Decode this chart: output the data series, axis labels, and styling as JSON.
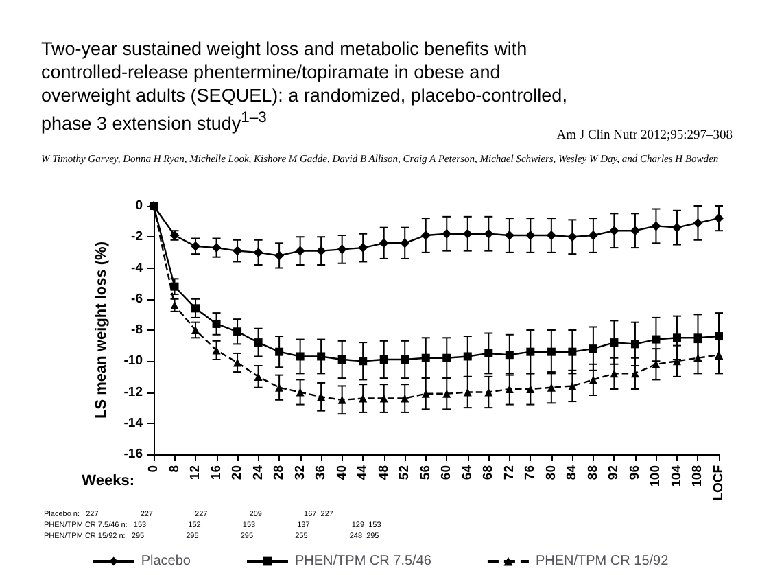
{
  "chart_data": {
    "type": "line",
    "title": "Two-year sustained weight loss and metabolic benefits with controlled-release phentermine/topiramate in obese and overweight adults (SEQUEL): a randomized, placebo-controlled, phase 3 extension study$^{1–3}$",
    "subtitle": "W Timothy Garvey, Donna H Ryan, Michelle Look, Kishore M Gadde, David B Allison, Craig A Peterson, Michael Schwiers, Wesley W Day, and Charles H Bowden",
    "xlabel": "Weeks:",
    "ylabel": "LS mean weight loss (%)",
    "annotations": [
      "Am J Clin Nutr 2012;95:297–308",
      "Placebo n:   227                    227                    227                    209                    167  227",
      "PHEN/TPM CR 7.5/46 n:   153                    152                    153                    137                    129  153",
      "PHEN/TPM CR 15/92 n:   295                    295                    295                    255                    248  295"
    ],
    "categories": [
      "0",
      "8",
      "12",
      "16",
      "20",
      "24",
      "28",
      "32",
      "36",
      "40",
      "44",
      "48",
      "52",
      "56",
      "60",
      "64",
      "68",
      "72",
      "76",
      "80",
      "84",
      "88",
      "92",
      "96",
      "100",
      "104",
      "108",
      "LOCF"
    ],
    "ylim": [
      -16,
      0
    ],
    "yticks": [
      -16,
      -14,
      -12,
      -10,
      -8,
      -6,
      -4,
      -2,
      0
    ],
    "grid": false,
    "legend": "bottom",
    "series": [
      {
        "name": "Placebo",
        "color": "#000000",
        "marker": "diamond",
        "line_style": "solid",
        "values": [
          0,
          -1.9,
          -2.6,
          -2.7,
          -2.9,
          -3.0,
          -3.2,
          -2.9,
          -2.9,
          -2.8,
          -2.7,
          -2.4,
          -2.4,
          -1.9,
          -1.8,
          -1.8,
          -1.8,
          -1.9,
          -1.9,
          -1.9,
          -2.0,
          -1.9,
          -1.6,
          -1.6,
          -1.3,
          -1.4,
          -1.1,
          -0.8
        ],
        "errors": [
          null,
          0.3,
          0.5,
          0.6,
          0.7,
          0.8,
          0.8,
          0.9,
          0.9,
          0.9,
          0.9,
          1.0,
          1.0,
          1.1,
          1.1,
          1.1,
          1.1,
          1.1,
          1.1,
          1.1,
          1.1,
          1.1,
          1.1,
          1.1,
          1.1,
          1.1,
          1.1,
          0.8
        ]
      },
      {
        "name": "PHEN/TPM CR 7.5/46",
        "color": "#000000",
        "marker": "square",
        "line_style": "solid",
        "values": [
          0,
          -5.2,
          -6.6,
          -7.6,
          -8.1,
          -8.8,
          -9.4,
          -9.7,
          -9.7,
          -9.9,
          -10.0,
          -9.9,
          -9.9,
          -9.8,
          -9.8,
          -9.7,
          -9.5,
          -9.6,
          -9.4,
          -9.4,
          -9.4,
          -9.2,
          -8.8,
          -8.9,
          -8.6,
          -8.5,
          -8.5,
          -8.4
        ],
        "errors": [
          null,
          0.5,
          0.6,
          0.7,
          0.8,
          0.9,
          1.0,
          1.1,
          1.1,
          1.2,
          1.2,
          1.2,
          1.2,
          1.3,
          1.3,
          1.3,
          1.3,
          1.3,
          1.4,
          1.4,
          1.4,
          1.4,
          1.4,
          1.4,
          1.4,
          1.4,
          1.5,
          1.5
        ]
      },
      {
        "name": "PHEN/TPM CR 15/92",
        "color": "#000000",
        "marker": "triangle",
        "line_style": "dashed",
        "values": [
          0,
          -6.4,
          -8.0,
          -9.3,
          -10.1,
          -11.0,
          -11.7,
          -12.0,
          -12.3,
          -12.5,
          -12.4,
          -12.4,
          -12.4,
          -12.1,
          -12.1,
          -12.0,
          -12.0,
          -11.8,
          -11.8,
          -11.7,
          -11.6,
          -11.2,
          -10.8,
          -10.8,
          -10.2,
          -10.0,
          -9.8,
          -9.6
        ],
        "errors": [
          null,
          0.4,
          0.5,
          0.6,
          0.6,
          0.7,
          0.8,
          0.8,
          0.9,
          0.9,
          0.9,
          0.9,
          0.9,
          1.0,
          1.0,
          1.0,
          1.0,
          1.0,
          1.0,
          1.0,
          1.0,
          1.0,
          1.0,
          1.0,
          1.0,
          1.0,
          1.0,
          1.2
        ]
      }
    ]
  }
}
